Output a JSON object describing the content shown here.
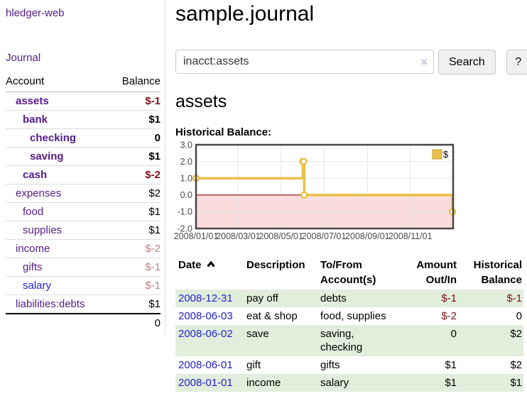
{
  "app": {
    "brand": "hledger-web",
    "nav": "Journal"
  },
  "sidebar": {
    "columns": {
      "account": "Account",
      "balance": "Balance"
    },
    "accounts": [
      {
        "name": "assets",
        "level": 1,
        "balance": "$-1",
        "style": "bold",
        "balance_style": "neg-bold"
      },
      {
        "name": "bank",
        "level": 2,
        "balance": "$1",
        "style": "bold",
        "balance_style": "bold"
      },
      {
        "name": "checking",
        "level": 3,
        "balance": "0",
        "style": "bold",
        "balance_style": "bold"
      },
      {
        "name": "saving",
        "level": 3,
        "balance": "$1",
        "style": "bold",
        "balance_style": "bold"
      },
      {
        "name": "cash",
        "level": 2,
        "balance": "$-2",
        "style": "bold",
        "balance_style": "neg-bold"
      },
      {
        "name": "expenses",
        "level": 1,
        "balance": "$2",
        "style": "",
        "balance_style": ""
      },
      {
        "name": "food",
        "level": 2,
        "balance": "$1",
        "style": "",
        "balance_style": ""
      },
      {
        "name": "supplies",
        "level": 2,
        "balance": "$1",
        "style": "",
        "balance_style": ""
      },
      {
        "name": "income",
        "level": 1,
        "balance": "$-2",
        "style": "",
        "balance_style": "neg-faded"
      },
      {
        "name": "gifts",
        "level": 2,
        "balance": "$-1",
        "style": "",
        "balance_style": "neg-faded"
      },
      {
        "name": "salary",
        "level": 2,
        "balance": "$-1",
        "style": "blue",
        "balance_style": "neg-faded"
      },
      {
        "name": "liabilities:debts",
        "level": 1,
        "balance": "$1",
        "style": "",
        "balance_style": ""
      }
    ],
    "total": "0"
  },
  "header": {
    "title": "sample.journal"
  },
  "search": {
    "value": "inacct:assets",
    "clear_icon": "×",
    "button_label": "Search",
    "help_label": "?"
  },
  "account_page": {
    "heading": "assets"
  },
  "chart_data": {
    "type": "line",
    "title": "Historical Balance:",
    "step": true,
    "x_domain": [
      "2008-01-01",
      "2009-01-01"
    ],
    "ylim": [
      -2,
      3
    ],
    "y_ticks": [
      "3.0",
      "2.0",
      "1.0",
      "0.0",
      "-1.0",
      "-2.0"
    ],
    "x_ticks": [
      "2008/01/01",
      "2008/03/01",
      "2008/05/01",
      "2008/07/01",
      "2008/09/01",
      "2008/11/01"
    ],
    "grid": true,
    "legend_position": "top-right",
    "series": [
      {
        "name": "$",
        "color": "#e9c04a",
        "points": [
          {
            "date": "2008-01-01",
            "value": 1
          },
          {
            "date": "2008-06-01",
            "value": 2
          },
          {
            "date": "2008-06-02",
            "value": 2
          },
          {
            "date": "2008-06-03",
            "value": 0
          },
          {
            "date": "2008-12-31",
            "value": -1
          }
        ]
      }
    ],
    "colors": {
      "negative_region": "#fbdcdc",
      "zero_line": "#8b0000",
      "grid_line": "#e5e5e5",
      "border": "#474747",
      "legend_swatch": "#e9c04a",
      "legend_swatch_border": "#c7a22e",
      "tick_text": "#4a4a4a",
      "point_fill": "#ffffff"
    }
  },
  "register": {
    "headers": [
      {
        "label": "Date",
        "sorted": "asc",
        "align": "left"
      },
      {
        "label": "Description",
        "align": "left"
      },
      {
        "label": "To/From Account(s)",
        "align": "left"
      },
      {
        "label": "Amount Out/In",
        "align": "right"
      },
      {
        "label": "Historical Balance",
        "align": "right"
      }
    ],
    "rows": [
      {
        "date": "2008-12-31",
        "description": "pay off",
        "accounts": "debts",
        "amount": "$-1",
        "balance": "$-1"
      },
      {
        "date": "2008-06-03",
        "description": "eat & shop",
        "accounts": "food, supplies",
        "amount": "$-2",
        "balance": "0"
      },
      {
        "date": "2008-06-02",
        "description": "save",
        "accounts": "saving, checking",
        "amount": "0",
        "balance": "$2"
      },
      {
        "date": "2008-06-01",
        "description": "gift",
        "accounts": "gifts",
        "amount": "$1",
        "balance": "$2"
      },
      {
        "date": "2008-01-01",
        "description": "income",
        "accounts": "salary",
        "amount": "$1",
        "balance": "$1"
      }
    ]
  }
}
